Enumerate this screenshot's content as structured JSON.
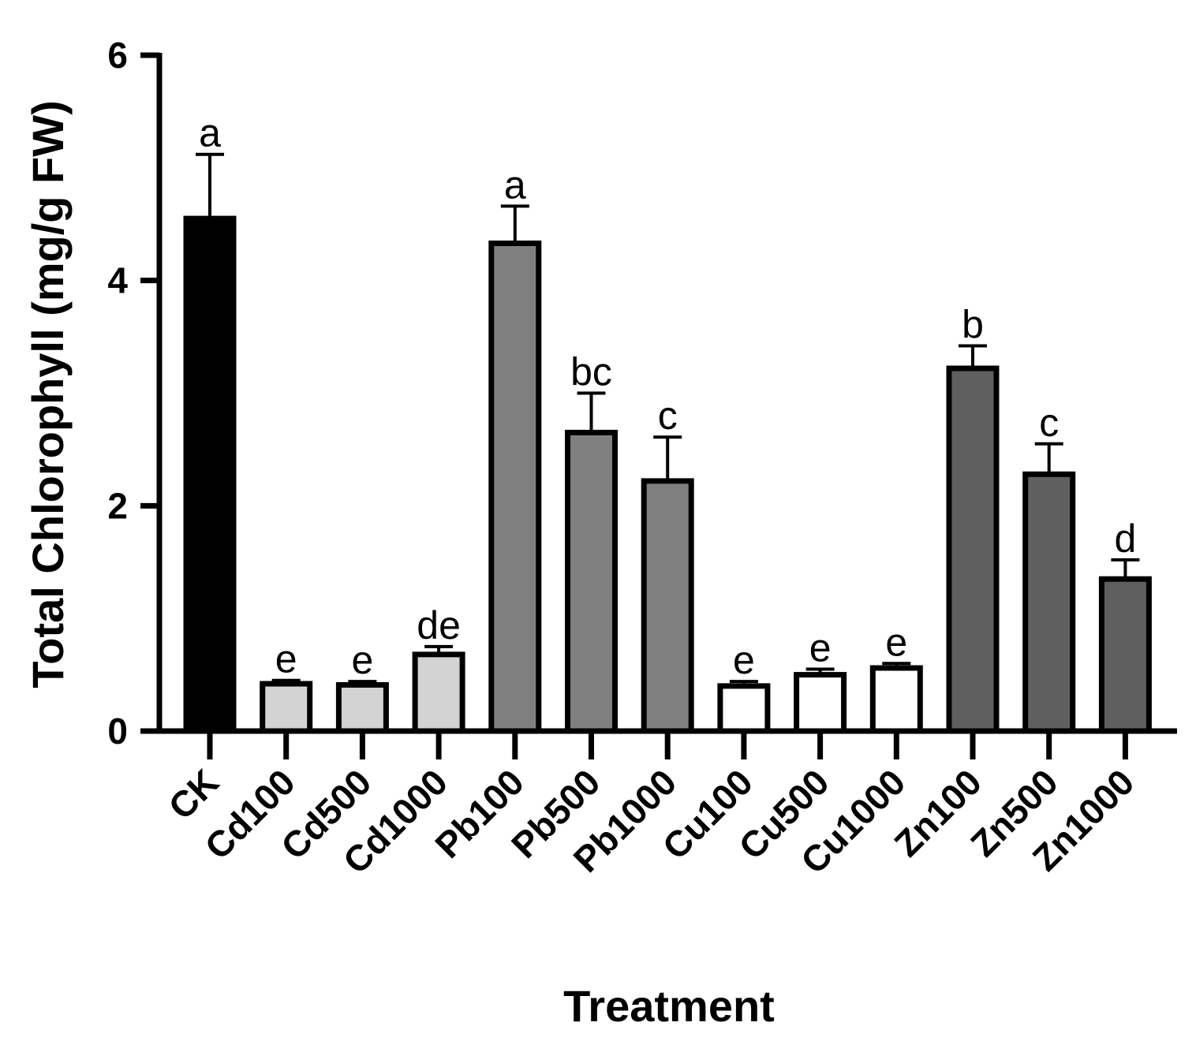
{
  "chart_data": {
    "type": "bar",
    "title": "",
    "xlabel": "Treatment",
    "ylabel": "Total Chlorophyll (mg/g FW)",
    "ylim": [
      0,
      6
    ],
    "yticks": [
      0,
      2,
      4,
      6
    ],
    "categories": [
      "CK",
      "Cd100",
      "Cd500",
      "Cd1000",
      "Pb100",
      "Pb500",
      "Pb1000",
      "Cu100",
      "Cu500",
      "Cu1000",
      "Zn100",
      "Zn500",
      "Zn1000"
    ],
    "values": [
      4.55,
      0.42,
      0.41,
      0.68,
      4.33,
      2.65,
      2.22,
      0.4,
      0.5,
      0.56,
      3.22,
      2.28,
      1.35
    ],
    "errors": [
      0.57,
      0.03,
      0.03,
      0.07,
      0.33,
      0.35,
      0.39,
      0.04,
      0.05,
      0.04,
      0.2,
      0.27,
      0.17
    ],
    "significance": [
      "a",
      "e",
      "e",
      "de",
      "a",
      "bc",
      "c",
      "e",
      "e",
      "e",
      "b",
      "c",
      "d"
    ],
    "fill_colors": [
      "#000000",
      "#d3d3d3",
      "#d3d3d3",
      "#d3d3d3",
      "#808080",
      "#808080",
      "#808080",
      "#ffffff",
      "#ffffff",
      "#ffffff",
      "#5f5f5f",
      "#5f5f5f",
      "#5f5f5f"
    ],
    "grid": false,
    "legend": "none"
  }
}
